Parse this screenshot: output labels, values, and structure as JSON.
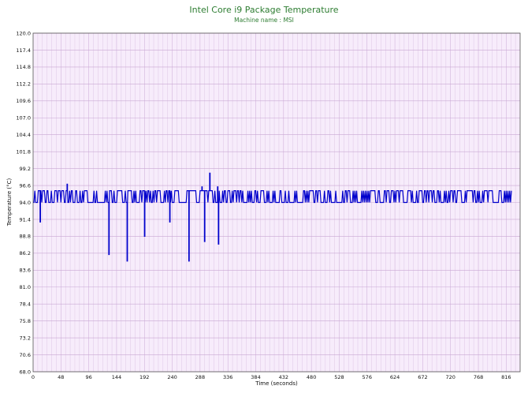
{
  "chart_data": {
    "type": "line",
    "title": "Intel Core i9 Package Temperature",
    "subtitle": "Machine name : MSI",
    "xlabel": "Time (seconds)",
    "ylabel": "Temperature (°C)",
    "xlim": [
      0,
      840
    ],
    "ylim": [
      68.0,
      120.0
    ],
    "xticks": [
      "0",
      "48",
      "96",
      "144",
      "192",
      "240",
      "288",
      "336",
      "384",
      "432",
      "480",
      "528",
      "576",
      "624",
      "672",
      "720",
      "768",
      "816"
    ],
    "yticks": [
      "68.0",
      "70.6",
      "73.2",
      "75.8",
      "78.4",
      "81.0",
      "83.6",
      "86.2",
      "88.8",
      "91.4",
      "94.0",
      "96.6",
      "99.2",
      "101.8",
      "104.4",
      "107.0",
      "109.6",
      "112.2",
      "114.8",
      "117.4",
      "120.0"
    ],
    "grid": true,
    "colors": {
      "line": "#0000cc",
      "plot_bg": "#f7ecfb",
      "grid": "#c9a7d4",
      "title": "#2e7d32"
    },
    "series": [
      {
        "baseline_low": 94.0,
        "baseline_high": 95.8,
        "dips": [
          {
            "x": 12,
            "y": 91.0
          },
          {
            "x": 43,
            "y": 88.8
          },
          {
            "x": 73,
            "y": 85.5
          },
          {
            "x": 131,
            "y": 86.0
          },
          {
            "x": 162,
            "y": 85.0
          },
          {
            "x": 175,
            "y": 89.3
          },
          {
            "x": 178,
            "y": 86.3
          },
          {
            "x": 192,
            "y": 88.8
          },
          {
            "x": 208,
            "y": 87.0
          },
          {
            "x": 220,
            "y": 87.5
          },
          {
            "x": 236,
            "y": 91.0
          },
          {
            "x": 253,
            "y": 90.0
          },
          {
            "x": 269,
            "y": 85.0
          },
          {
            "x": 296,
            "y": 88.0
          },
          {
            "x": 320,
            "y": 87.6
          }
        ],
        "spikes": [
          {
            "x": 59,
            "y": 96.8
          },
          {
            "x": 97,
            "y": 96.6
          },
          {
            "x": 145,
            "y": 96.6
          },
          {
            "x": 190,
            "y": 96.4
          },
          {
            "x": 250,
            "y": 100.0
          },
          {
            "x": 265,
            "y": 96.5
          },
          {
            "x": 291,
            "y": 96.4
          },
          {
            "x": 305,
            "y": 98.5
          },
          {
            "x": 318,
            "y": 96.4
          }
        ]
      }
    ]
  }
}
